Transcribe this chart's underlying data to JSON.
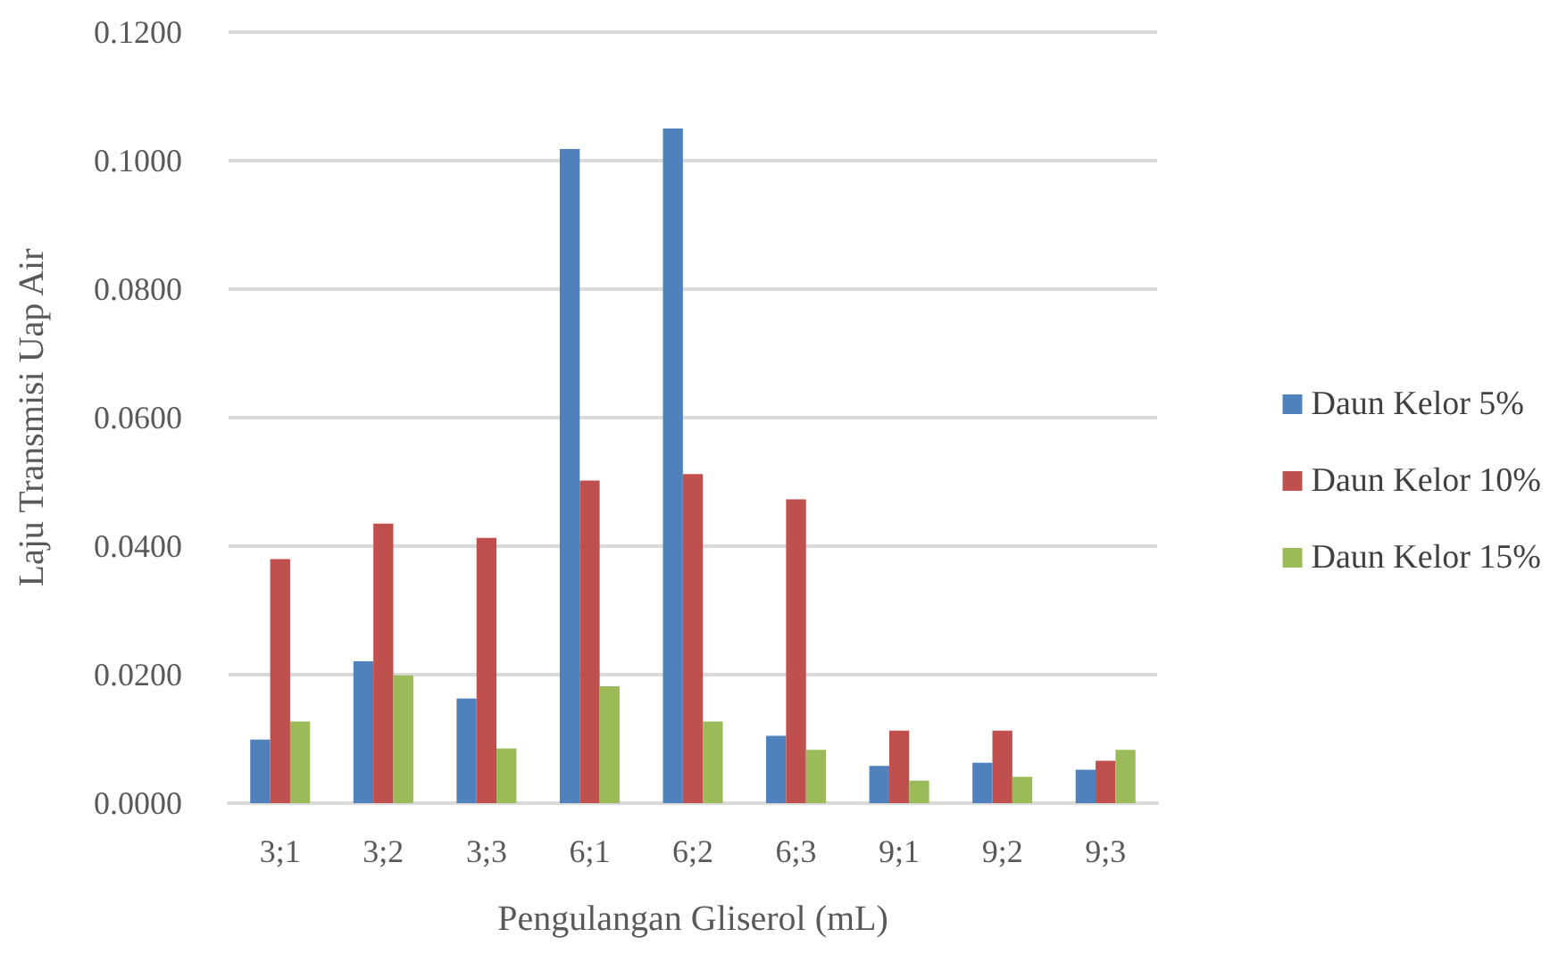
{
  "chart_data": {
    "type": "bar",
    "xlabel": "Pengulangan Gliserol (mL)",
    "ylabel": "Laju Transmisi Uap Air",
    "categories": [
      "3;1",
      "3;2",
      "3;3",
      "6;1",
      "6;2",
      "6;3",
      "9;1",
      "9;2",
      "9;3"
    ],
    "series": [
      {
        "name": "Daun Kelor 5%",
        "color": "#4f81bd",
        "values": [
          0.0099,
          0.0221,
          0.0163,
          0.1018,
          0.105,
          0.0105,
          0.0058,
          0.0063,
          0.0052
        ]
      },
      {
        "name": "Daun Kelor 10%",
        "color": "#c0504d",
        "values": [
          0.038,
          0.0435,
          0.0413,
          0.0502,
          0.0512,
          0.0473,
          0.0113,
          0.0113,
          0.0066
        ]
      },
      {
        "name": "Daun Kelor 15%",
        "color": "#9bbb59",
        "values": [
          0.0127,
          0.0199,
          0.0085,
          0.0182,
          0.0127,
          0.0083,
          0.0035,
          0.0041,
          0.0083
        ]
      }
    ],
    "ylim": [
      0,
      0.12
    ],
    "yticks": [
      {
        "value": 0,
        "label": "0.0000"
      },
      {
        "value": 0.02,
        "label": "0.0200"
      },
      {
        "value": 0.04,
        "label": "0.0400"
      },
      {
        "value": 0.06,
        "label": "0.0600"
      },
      {
        "value": 0.08,
        "label": "0.0800"
      },
      {
        "value": 0.1,
        "label": "0.1000"
      },
      {
        "value": 0.12,
        "label": "0.1200"
      }
    ],
    "grid": "y",
    "legend": "right"
  }
}
